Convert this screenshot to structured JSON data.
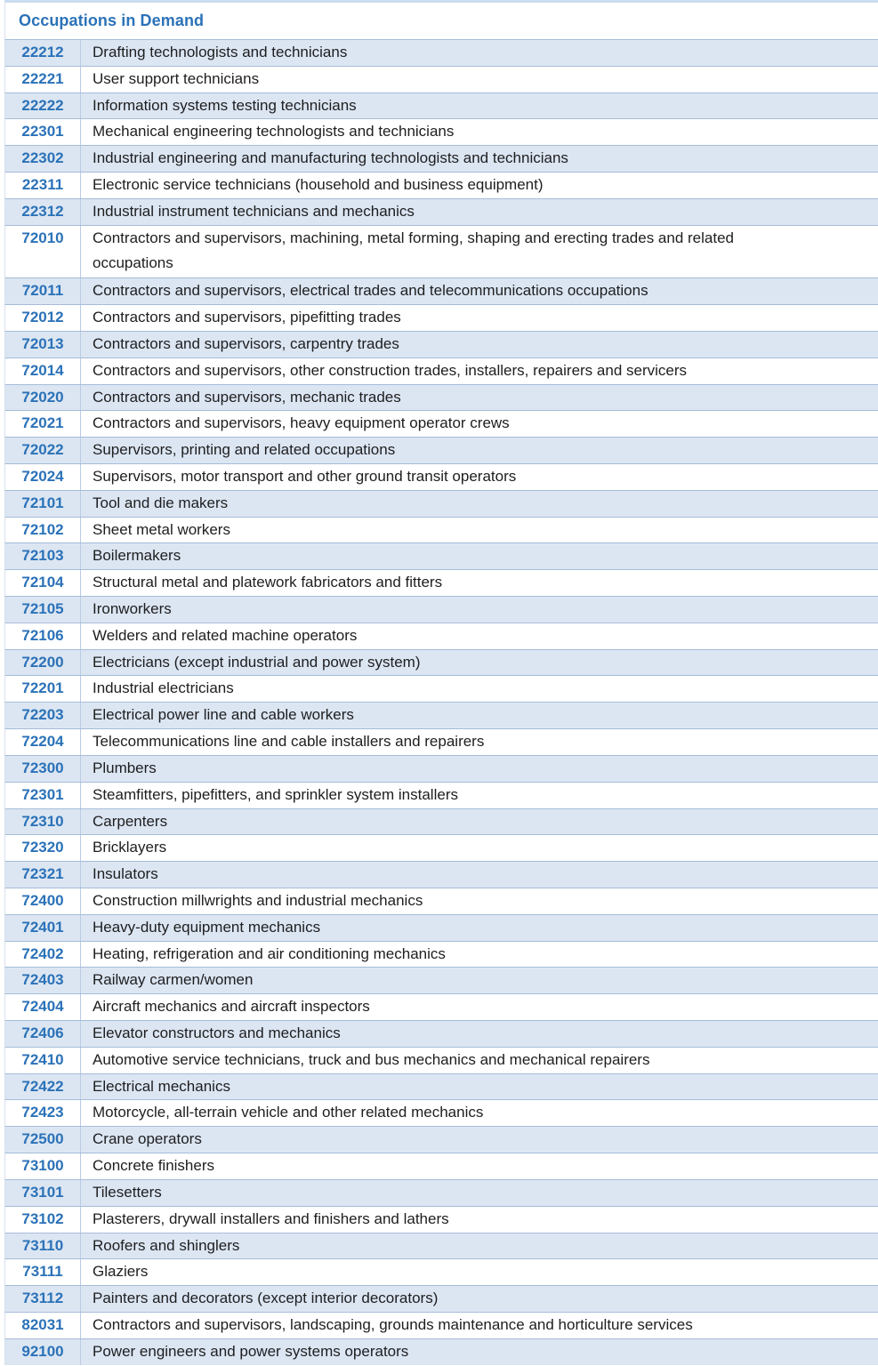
{
  "title": "Occupations in Demand",
  "colors": {
    "accent_blue": "#2B72B8",
    "band_blue": "#DCE6F2",
    "row_border_blue": "#A6BCD9",
    "column_divider_blue": "#B9CBE3",
    "body_text": "#1E1E20",
    "top_border_blue": "#CBDDF0"
  },
  "table": {
    "columns": [
      "code",
      "occupation"
    ],
    "rows": [
      {
        "code": "22212",
        "occupation": "Drafting technologists and technicians"
      },
      {
        "code": "22221",
        "occupation": "User support technicians"
      },
      {
        "code": "22222",
        "occupation": "Information systems testing technicians"
      },
      {
        "code": "22301",
        "occupation": "Mechanical engineering technologists and technicians"
      },
      {
        "code": "22302",
        "occupation": "Industrial engineering and manufacturing technologists and technicians"
      },
      {
        "code": "22311",
        "occupation": "Electronic service technicians (household and business equipment)"
      },
      {
        "code": "22312",
        "occupation": "Industrial instrument technicians and mechanics"
      },
      {
        "code": "72010",
        "occupation": "Contractors and supervisors, machining, metal forming, shaping and erecting trades and related occupations",
        "two_line": true
      },
      {
        "code": "72011",
        "occupation": "Contractors and supervisors, electrical trades and telecommunications occupations"
      },
      {
        "code": "72012",
        "occupation": "Contractors and supervisors, pipefitting trades"
      },
      {
        "code": "72013",
        "occupation": "Contractors and supervisors, carpentry trades"
      },
      {
        "code": "72014",
        "occupation": "Contractors and supervisors, other construction trades, installers, repairers and servicers"
      },
      {
        "code": "72020",
        "occupation": "Contractors and supervisors, mechanic trades"
      },
      {
        "code": "72021",
        "occupation": "Contractors and supervisors, heavy equipment operator crews"
      },
      {
        "code": "72022",
        "occupation": "Supervisors, printing and related occupations"
      },
      {
        "code": "72024",
        "occupation": "Supervisors, motor transport and other ground transit operators"
      },
      {
        "code": "72101",
        "occupation": "Tool and die makers"
      },
      {
        "code": "72102",
        "occupation": "Sheet metal workers"
      },
      {
        "code": "72103",
        "occupation": "Boilermakers"
      },
      {
        "code": "72104",
        "occupation": "Structural metal and platework fabricators and fitters"
      },
      {
        "code": "72105",
        "occupation": "Ironworkers"
      },
      {
        "code": "72106",
        "occupation": "Welders and related machine operators"
      },
      {
        "code": "72200",
        "occupation": "Electricians (except industrial and power system)"
      },
      {
        "code": "72201",
        "occupation": "Industrial electricians"
      },
      {
        "code": "72203",
        "occupation": "Electrical power line and cable workers"
      },
      {
        "code": "72204",
        "occupation": "Telecommunications line and cable installers and repairers"
      },
      {
        "code": "72300",
        "occupation": "Plumbers"
      },
      {
        "code": "72301",
        "occupation": "Steamfitters, pipefitters, and sprinkler system installers"
      },
      {
        "code": "72310",
        "occupation": "Carpenters"
      },
      {
        "code": "72320",
        "occupation": "Bricklayers"
      },
      {
        "code": "72321",
        "occupation": "Insulators"
      },
      {
        "code": "72400",
        "occupation": "Construction millwrights and industrial mechanics"
      },
      {
        "code": "72401",
        "occupation": "Heavy-duty equipment mechanics"
      },
      {
        "code": "72402",
        "occupation": "Heating, refrigeration and air conditioning mechanics"
      },
      {
        "code": "72403",
        "occupation": "Railway carmen/women"
      },
      {
        "code": "72404",
        "occupation": "Aircraft mechanics and aircraft inspectors"
      },
      {
        "code": "72406",
        "occupation": "Elevator constructors and mechanics"
      },
      {
        "code": "72410",
        "occupation": "Automotive service technicians, truck and bus mechanics and mechanical repairers"
      },
      {
        "code": "72422",
        "occupation": "Electrical mechanics"
      },
      {
        "code": "72423",
        "occupation": "Motorcycle, all-terrain vehicle and other related mechanics"
      },
      {
        "code": "72500",
        "occupation": "Crane operators"
      },
      {
        "code": "73100",
        "occupation": "Concrete finishers"
      },
      {
        "code": "73101",
        "occupation": "Tilesetters"
      },
      {
        "code": "73102",
        "occupation": "Plasterers, drywall installers and finishers and lathers"
      },
      {
        "code": "73110",
        "occupation": "Roofers and shinglers"
      },
      {
        "code": "73111",
        "occupation": "Glaziers"
      },
      {
        "code": "73112",
        "occupation": "Painters and decorators (except interior decorators)"
      },
      {
        "code": "82031",
        "occupation": "Contractors and supervisors, landscaping, grounds maintenance and horticulture services"
      },
      {
        "code": "92100",
        "occupation": "Power engineers and power systems operators"
      }
    ]
  }
}
